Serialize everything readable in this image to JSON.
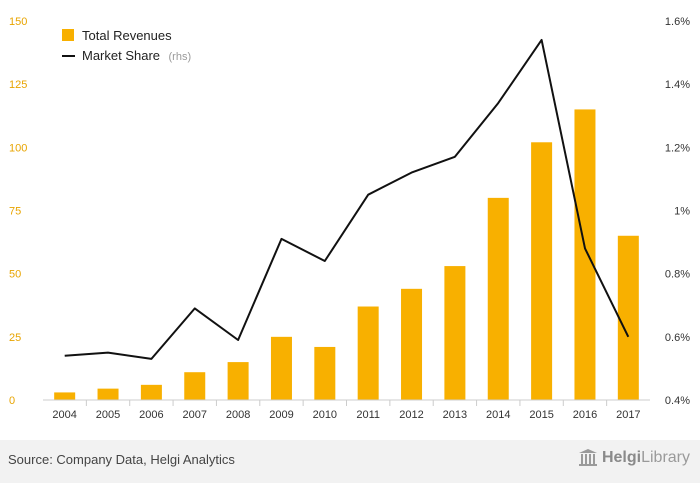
{
  "chart_data": {
    "type": "bar",
    "categories": [
      "2004",
      "2005",
      "2006",
      "2007",
      "2008",
      "2009",
      "2010",
      "2011",
      "2012",
      "2013",
      "2014",
      "2015",
      "2016",
      "2017"
    ],
    "series": [
      {
        "name": "Total Revenues",
        "axis": "left",
        "type": "bar",
        "color": "#f8b000",
        "values": [
          3,
          4.5,
          6,
          11,
          15,
          25,
          21,
          37,
          44,
          53,
          80,
          102,
          115,
          65
        ]
      },
      {
        "name": "Market Share",
        "legend_suffix": "(rhs)",
        "axis": "right",
        "type": "line",
        "color": "#111111",
        "values": [
          0.54,
          0.55,
          0.53,
          0.69,
          0.59,
          0.91,
          0.84,
          1.05,
          1.12,
          1.17,
          1.34,
          1.54,
          0.88,
          0.6
        ]
      }
    ],
    "ylim": [
      0,
      150
    ],
    "y_ticks": [
      "0",
      "25",
      "50",
      "75",
      "100",
      "125",
      "150"
    ],
    "y_tick_values": [
      0,
      25,
      50,
      75,
      100,
      125,
      150
    ],
    "y2lim": [
      0.4,
      1.6
    ],
    "y2_ticks": [
      "0.4%",
      "0.6%",
      "0.8%",
      "1%",
      "1.2%",
      "1.4%",
      "1.6%"
    ],
    "y2_tick_values": [
      0.4,
      0.6,
      0.8,
      1.0,
      1.2,
      1.4,
      1.6
    ],
    "legend_position": "top-left",
    "grid": false
  },
  "footer": {
    "source": "Source: Company Data, Helgi Analytics",
    "logo_part1": "Helgi",
    "logo_part2": "Library",
    "logo_icon": "library-building-icon"
  }
}
